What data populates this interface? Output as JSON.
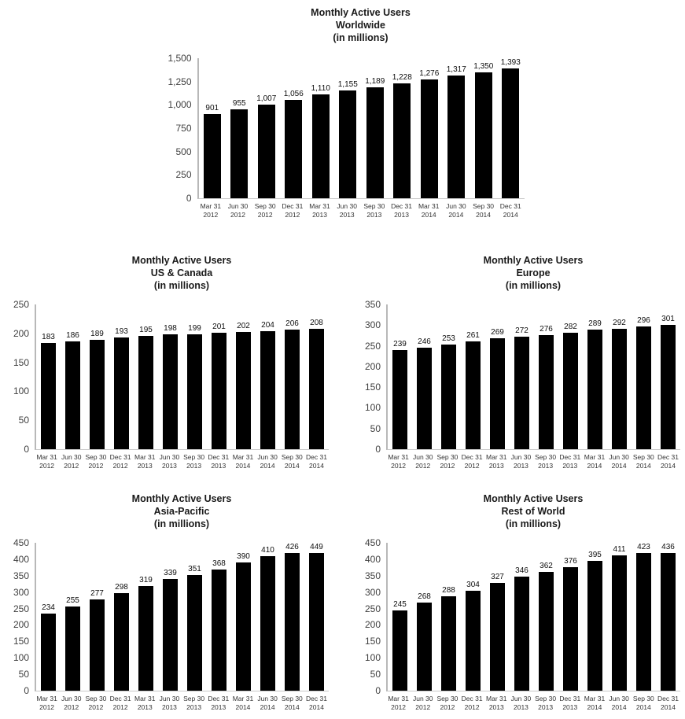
{
  "chart_data": [
    {
      "type": "bar",
      "title": "Monthly Active Users Worldwide (in millions)",
      "title_lines": [
        "Monthly Active Users",
        "Worldwide",
        "(in millions)"
      ],
      "categories": [
        [
          "Mar 31",
          "2012"
        ],
        [
          "Jun 30",
          "2012"
        ],
        [
          "Sep 30",
          "2012"
        ],
        [
          "Dec 31",
          "2012"
        ],
        [
          "Mar 31",
          "2013"
        ],
        [
          "Jun 30",
          "2013"
        ],
        [
          "Sep 30",
          "2013"
        ],
        [
          "Dec 31",
          "2013"
        ],
        [
          "Mar 31",
          "2014"
        ],
        [
          "Jun 30",
          "2014"
        ],
        [
          "Sep 30",
          "2014"
        ],
        [
          "Dec 31",
          "2014"
        ]
      ],
      "values": [
        901,
        955,
        1007,
        1056,
        1110,
        1155,
        1189,
        1228,
        1276,
        1317,
        1350,
        1393
      ],
      "value_labels": [
        "901",
        "955",
        "1,007",
        "1,056",
        "1,110",
        "1,155",
        "1,189",
        "1,228",
        "1,276",
        "1,317",
        "1,350",
        "1,393"
      ],
      "ylim": [
        0,
        1500
      ],
      "ytick_interval": 250,
      "yticks": [
        "1,500",
        "1,250",
        "1,000",
        "750",
        "500",
        "250",
        "0"
      ],
      "bar_color": "#000000",
      "grid": false,
      "legend": null
    },
    {
      "type": "bar",
      "title": "Monthly Active Users US & Canada (in millions)",
      "title_lines": [
        "Monthly Active Users",
        "US & Canada",
        "(in millions)"
      ],
      "categories": [
        [
          "Mar 31",
          "2012"
        ],
        [
          "Jun 30",
          "2012"
        ],
        [
          "Sep 30",
          "2012"
        ],
        [
          "Dec 31",
          "2012"
        ],
        [
          "Mar 31",
          "2013"
        ],
        [
          "Jun 30",
          "2013"
        ],
        [
          "Sep 30",
          "2013"
        ],
        [
          "Dec 31",
          "2013"
        ],
        [
          "Mar 31",
          "2014"
        ],
        [
          "Jun 30",
          "2014"
        ],
        [
          "Sep 30",
          "2014"
        ],
        [
          "Dec 31",
          "2014"
        ]
      ],
      "values": [
        183,
        186,
        189,
        193,
        195,
        198,
        199,
        201,
        202,
        204,
        206,
        208
      ],
      "value_labels": [
        "183",
        "186",
        "189",
        "193",
        "195",
        "198",
        "199",
        "201",
        "202",
        "204",
        "206",
        "208"
      ],
      "ylim": [
        0,
        250
      ],
      "ytick_interval": 50,
      "yticks": [
        "250",
        "200",
        "150",
        "100",
        "50",
        "0"
      ],
      "bar_color": "#000000",
      "grid": false,
      "legend": null
    },
    {
      "type": "bar",
      "title": "Monthly Active Users Europe (in millions)",
      "title_lines": [
        "Monthly Active Users",
        "Europe",
        "(in millions)"
      ],
      "categories": [
        [
          "Mar 31",
          "2012"
        ],
        [
          "Jun 30",
          "2012"
        ],
        [
          "Sep 30",
          "2012"
        ],
        [
          "Dec 31",
          "2012"
        ],
        [
          "Mar 31",
          "2013"
        ],
        [
          "Jun 30",
          "2013"
        ],
        [
          "Sep 30",
          "2013"
        ],
        [
          "Dec 31",
          "2013"
        ],
        [
          "Mar 31",
          "2014"
        ],
        [
          "Jun 30",
          "2014"
        ],
        [
          "Sep 30",
          "2014"
        ],
        [
          "Dec 31",
          "2014"
        ]
      ],
      "values": [
        239,
        246,
        253,
        261,
        269,
        272,
        276,
        282,
        289,
        292,
        296,
        301
      ],
      "value_labels": [
        "239",
        "246",
        "253",
        "261",
        "269",
        "272",
        "276",
        "282",
        "289",
        "292",
        "296",
        "301"
      ],
      "ylim": [
        0,
        350
      ],
      "ytick_interval": 50,
      "yticks": [
        "350",
        "300",
        "250",
        "200",
        "150",
        "100",
        "50",
        "0"
      ],
      "bar_color": "#000000",
      "grid": false,
      "legend": null
    },
    {
      "type": "bar",
      "title": "Monthly Active Users Asia-Pacific (in millions)",
      "title_lines": [
        "Monthly Active Users",
        "Asia-Pacific",
        "(in millions)"
      ],
      "categories": [
        [
          "Mar 31",
          "2012"
        ],
        [
          "Jun 30",
          "2012"
        ],
        [
          "Sep 30",
          "2012"
        ],
        [
          "Dec 31",
          "2012"
        ],
        [
          "Mar 31",
          "2013"
        ],
        [
          "Jun 30",
          "2013"
        ],
        [
          "Sep 30",
          "2013"
        ],
        [
          "Dec 31",
          "2013"
        ],
        [
          "Mar 31",
          "2014"
        ],
        [
          "Jun 30",
          "2014"
        ],
        [
          "Sep 30",
          "2014"
        ],
        [
          "Dec 31",
          "2014"
        ]
      ],
      "values": [
        234,
        255,
        277,
        298,
        319,
        339,
        351,
        368,
        390,
        410,
        426,
        449
      ],
      "value_labels": [
        "234",
        "255",
        "277",
        "298",
        "319",
        "339",
        "351",
        "368",
        "390",
        "410",
        "426",
        "449"
      ],
      "ylim": [
        0,
        450
      ],
      "ytick_interval": 50,
      "yticks": [
        "450",
        "400",
        "350",
        "300",
        "250",
        "200",
        "150",
        "100",
        "50",
        "0"
      ],
      "bar_color": "#000000",
      "grid": false,
      "legend": null
    },
    {
      "type": "bar",
      "title": "Monthly Active Users Rest of World (in millions)",
      "title_lines": [
        "Monthly Active Users",
        "Rest of World",
        "(in millions)"
      ],
      "categories": [
        [
          "Mar 31",
          "2012"
        ],
        [
          "Jun 30",
          "2012"
        ],
        [
          "Sep 30",
          "2012"
        ],
        [
          "Dec 31",
          "2012"
        ],
        [
          "Mar 31",
          "2013"
        ],
        [
          "Jun 30",
          "2013"
        ],
        [
          "Sep 30",
          "2013"
        ],
        [
          "Dec 31",
          "2013"
        ],
        [
          "Mar 31",
          "2014"
        ],
        [
          "Jun 30",
          "2014"
        ],
        [
          "Sep 30",
          "2014"
        ],
        [
          "Dec 31",
          "2014"
        ]
      ],
      "values": [
        245,
        268,
        288,
        304,
        327,
        346,
        362,
        376,
        395,
        411,
        423,
        436
      ],
      "value_labels": [
        "245",
        "268",
        "288",
        "304",
        "327",
        "346",
        "362",
        "376",
        "395",
        "411",
        "423",
        "436"
      ],
      "ylim": [
        0,
        450
      ],
      "ytick_interval": 50,
      "yticks": [
        "450",
        "400",
        "350",
        "300",
        "250",
        "200",
        "150",
        "100",
        "50",
        "0"
      ],
      "bar_color": "#000000",
      "grid": false,
      "legend": null
    }
  ]
}
